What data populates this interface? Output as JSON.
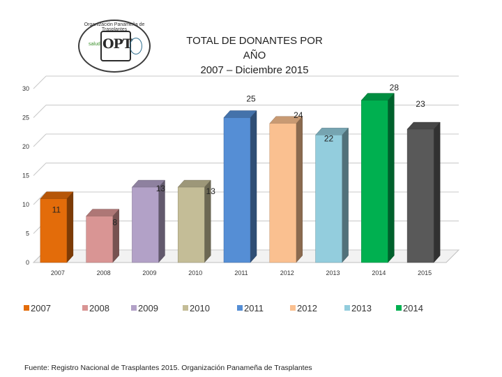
{
  "header": {
    "title_line1": "TOTAL DE DONANTES POR",
    "title_line2": "AÑO",
    "title_line3": "2007 – Diciembre 2015"
  },
  "logo": {
    "text": "OPT",
    "arc_text": "Organización Panameña de Trasplantes",
    "left_text": "salud"
  },
  "source": "Fuente: Registro Nacional de Trasplantes 2015. Organización Panameña de Trasplantes",
  "chart_data": {
    "type": "bar",
    "title": "TOTAL DE DONANTES POR AÑO 2007 – Diciembre 2015",
    "categories": [
      "2007",
      "2008",
      "2009",
      "2010",
      "2011",
      "2012",
      "2013",
      "2014",
      "2015"
    ],
    "values": [
      11,
      8,
      13,
      13,
      25,
      24,
      22,
      28,
      23
    ],
    "colors": [
      "#E36C0A",
      "#D99594",
      "#B2A1C7",
      "#C4BD97",
      "#558ED5",
      "#FAC090",
      "#93CDDD",
      "#00B050",
      "#595959"
    ],
    "ylim": [
      0,
      30
    ],
    "yticks": [
      0,
      5,
      10,
      15,
      20,
      25,
      30
    ],
    "legend": [
      "2007",
      "2008",
      "2009",
      "2010",
      "2011",
      "2012",
      "2013",
      "2014"
    ],
    "legend_position": "bottom",
    "grid": true
  }
}
